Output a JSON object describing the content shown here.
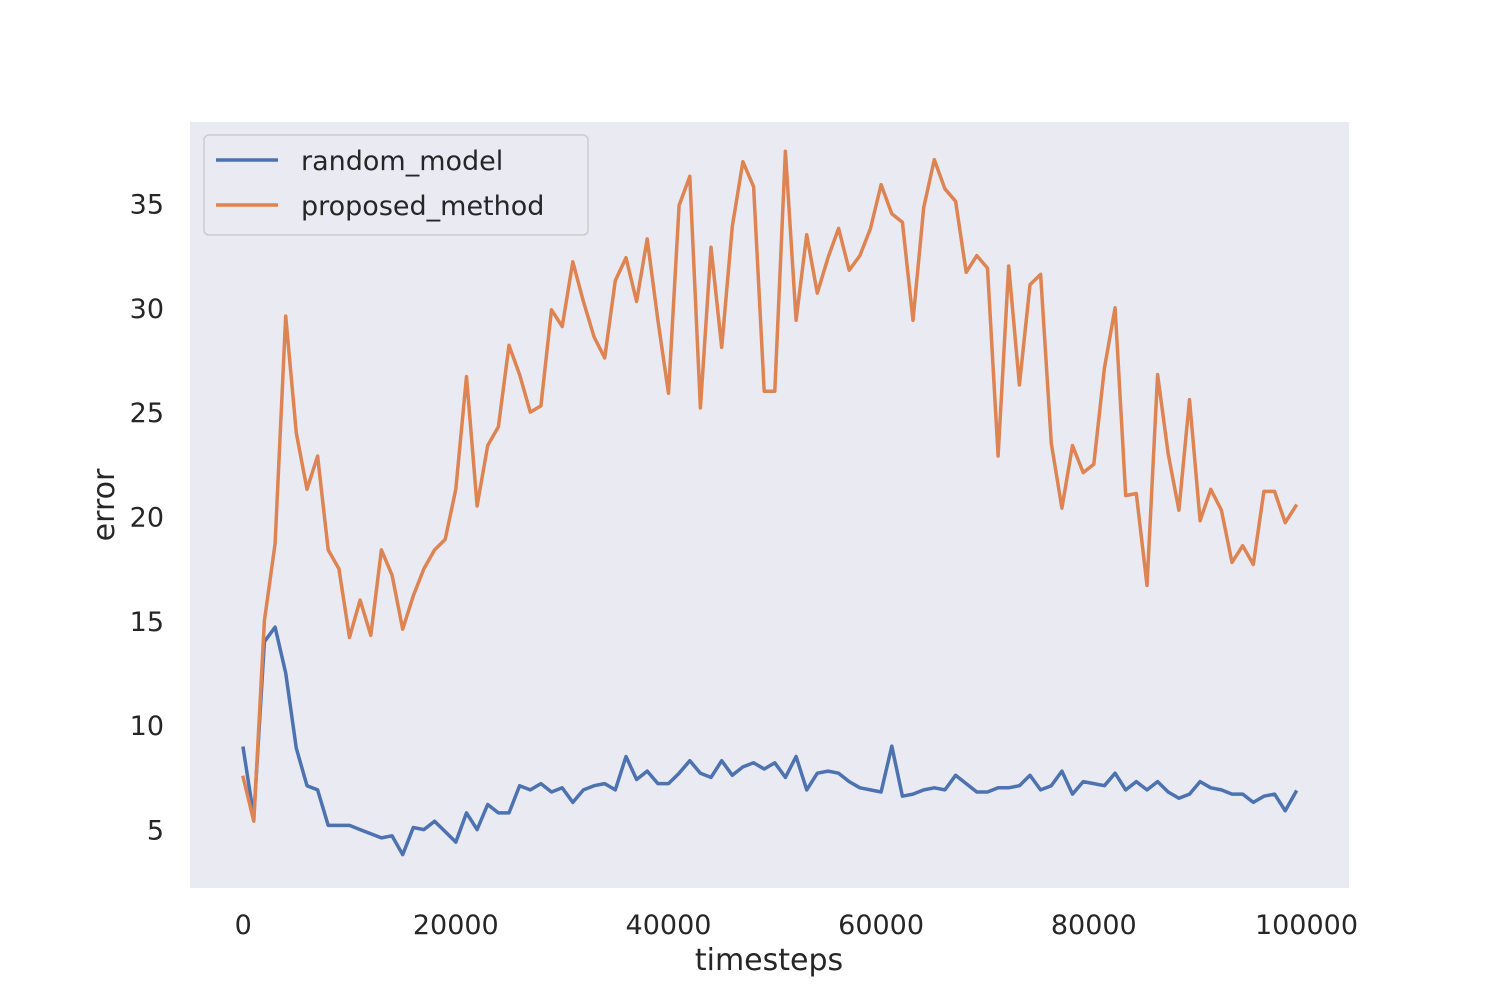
{
  "chart_data": {
    "type": "line",
    "title": "",
    "xlabel": "timesteps",
    "ylabel": "error",
    "xlim": [
      -5000,
      104000
    ],
    "ylim": [
      2.2,
      38.9
    ],
    "grid": false,
    "legend_position": "top-left",
    "x_ticks": [
      0,
      20000,
      40000,
      60000,
      80000,
      100000
    ],
    "y_ticks": [
      5,
      10,
      15,
      20,
      25,
      30,
      35
    ],
    "colors": {
      "background": "#eaeaf2",
      "random_model": "#4c72b0",
      "proposed_method": "#dd8452"
    },
    "x_start": 0,
    "x_step": 1000,
    "series": [
      {
        "name": "random_model",
        "color": "#4c72b0",
        "values": [
          8.9,
          5.6,
          14.0,
          14.7,
          12.5,
          8.9,
          7.1,
          6.9,
          5.2,
          5.2,
          5.2,
          5.0,
          4.8,
          4.6,
          4.7,
          3.8,
          5.1,
          5.0,
          5.4,
          4.9,
          4.4,
          5.8,
          5.0,
          6.2,
          5.8,
          5.8,
          7.1,
          6.9,
          7.2,
          6.8,
          7.0,
          6.3,
          6.9,
          7.1,
          7.2,
          6.9,
          8.5,
          7.4,
          7.8,
          7.2,
          7.2,
          7.7,
          8.3,
          7.7,
          7.5,
          8.3,
          7.6,
          8.0,
          8.2,
          7.9,
          8.2,
          7.5,
          8.5,
          6.9,
          7.7,
          7.8,
          7.7,
          7.3,
          7.0,
          6.9,
          6.8,
          9.0,
          6.6,
          6.7,
          6.9,
          7.0,
          6.9,
          7.6,
          7.2,
          6.8,
          6.8,
          7.0,
          7.0,
          7.1,
          7.6,
          6.9,
          7.1,
          7.8,
          6.7,
          7.3,
          7.2,
          7.1,
          7.7,
          6.9,
          7.3,
          6.9,
          7.3,
          6.8,
          6.5,
          6.7,
          7.3,
          7.0,
          6.9,
          6.7,
          6.7,
          6.3,
          6.6,
          6.7,
          5.9,
          6.8
        ]
      },
      {
        "name": "proposed_method",
        "color": "#dd8452",
        "values": [
          7.5,
          5.4,
          15.0,
          18.7,
          29.6,
          24.0,
          21.3,
          22.9,
          18.4,
          17.5,
          14.2,
          16.0,
          14.3,
          18.4,
          17.2,
          14.6,
          16.2,
          17.5,
          18.4,
          18.9,
          21.3,
          26.7,
          20.5,
          23.4,
          24.3,
          28.2,
          26.8,
          25.0,
          25.3,
          29.9,
          29.1,
          32.2,
          30.3,
          28.6,
          27.6,
          31.3,
          32.4,
          30.3,
          33.3,
          29.4,
          25.9,
          34.9,
          36.3,
          25.2,
          32.9,
          28.1,
          33.9,
          37.0,
          35.8,
          26.0,
          26.0,
          37.5,
          29.4,
          33.5,
          30.7,
          32.4,
          33.8,
          31.8,
          32.5,
          33.8,
          35.9,
          34.5,
          34.1,
          29.4,
          34.8,
          37.1,
          35.7,
          35.1,
          31.7,
          32.5,
          31.9,
          22.9,
          32.0,
          26.3,
          31.1,
          31.6,
          23.5,
          20.4,
          23.4,
          22.1,
          22.5,
          27.1,
          30.0,
          21.0,
          21.1,
          16.7,
          26.8,
          23.0,
          20.3,
          25.6,
          19.8,
          21.3,
          20.3,
          17.8,
          18.6,
          17.7,
          21.2,
          21.2,
          19.7,
          20.5
        ]
      }
    ]
  }
}
